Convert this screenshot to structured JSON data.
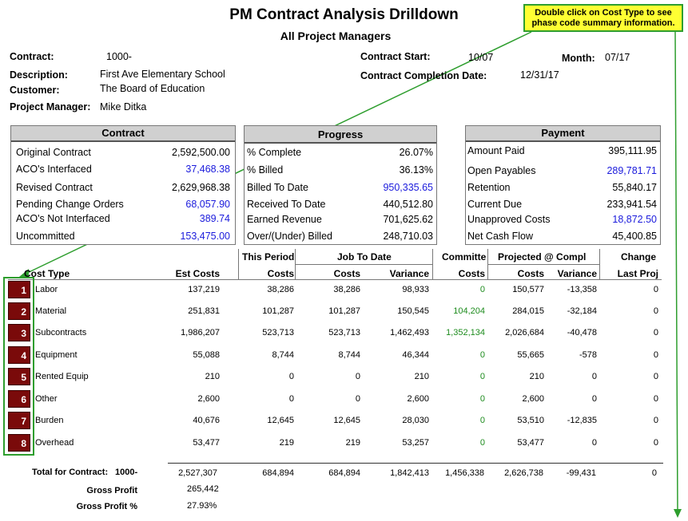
{
  "report": {
    "title": "PM Contract Analysis Drilldown",
    "subtitle": "All Project Managers",
    "callout": "Double click on Cost Type to see phase code summary information."
  },
  "info": {
    "contract_label": "Contract:",
    "contract_value": "1000-",
    "description_label": "Description:",
    "description_value": "First Ave Elementary School",
    "customer_label": "Customer:",
    "customer_value": "The Board of Education",
    "pm_label": "Project Manager:",
    "pm_value": "Mike Ditka",
    "start_label": "Contract Start:",
    "start_value": "10/07",
    "month_label": "Month:",
    "month_value": "07/17",
    "completion_label": "Contract Completion Date:",
    "completion_value": "12/31/17"
  },
  "contract_panel": {
    "title": "Contract",
    "rows": [
      {
        "label": "Original Contract",
        "value": "2,592,500.00",
        "color": "#000000"
      },
      {
        "label": "ACO's Interfaced",
        "value": "37,468.38",
        "color": "#1a1adc"
      },
      {
        "label": "Revised Contract",
        "value": "2,629,968.38",
        "color": "#000000"
      },
      {
        "label": "Pending Change Orders",
        "value": "68,057.90",
        "color": "#1a1adc"
      },
      {
        "label": "ACO's Not Interfaced",
        "value": "389.74",
        "color": "#1a1adc"
      },
      {
        "label": "Uncommitted",
        "value": "153,475.00",
        "color": "#1a1adc"
      }
    ]
  },
  "progress_panel": {
    "title": "Progress",
    "rows": [
      {
        "label": "% Complete",
        "value": "26.07%",
        "color": "#000000"
      },
      {
        "label": "% Billed",
        "value": "36.13%",
        "color": "#000000"
      },
      {
        "label": "Billed To Date",
        "value": "950,335.65",
        "color": "#1a1adc"
      },
      {
        "label": "Received To Date",
        "value": "440,512.80",
        "color": "#000000"
      },
      {
        "label": "Earned Revenue",
        "value": "701,625.62",
        "color": "#000000"
      },
      {
        "label": "Over/(Under) Billed",
        "value": "248,710.03",
        "color": "#000000"
      }
    ]
  },
  "payment_panel": {
    "title": "Payment",
    "rows": [
      {
        "label": "Amount Paid",
        "value": "395,111.95",
        "color": "#000000"
      },
      {
        "label": "Open Payables",
        "value": "289,781.71",
        "color": "#1a1adc"
      },
      {
        "label": "Retention",
        "value": "55,840.17",
        "color": "#000000"
      },
      {
        "label": "Current Due",
        "value": "233,941.54",
        "color": "#000000"
      },
      {
        "label": "Unapproved Costs",
        "value": "18,872.50",
        "color": "#1a1adc"
      },
      {
        "label": "Net Cash Flow",
        "value": "45,400.85",
        "color": "#000000"
      }
    ]
  },
  "table": {
    "group_headers": {
      "this_period": "This Period",
      "job_to_date": "Job To Date",
      "committed": "Committe",
      "projected": "Projected @ Compl",
      "change": "Change"
    },
    "headers": {
      "cost_type": "Cost Type",
      "est_costs": "Est Costs",
      "tp_costs": "Costs",
      "jtd_costs": "Costs",
      "jtd_variance": "Variance",
      "committed_costs": "Costs",
      "proj_costs": "Costs",
      "proj_variance": "Variance",
      "last_proj": "Last Proj"
    },
    "rows": [
      {
        "num": "1",
        "name": "Labor",
        "est": "137,219",
        "tp": "38,286",
        "jtd": "38,286",
        "var": "98,933",
        "comm": "0",
        "proj": "150,577",
        "pvar": "-13,358",
        "chg": "0"
      },
      {
        "num": "2",
        "name": "Material",
        "est": "251,831",
        "tp": "101,287",
        "jtd": "101,287",
        "var": "150,545",
        "comm": "104,204",
        "proj": "284,015",
        "pvar": "-32,184",
        "chg": "0"
      },
      {
        "num": "3",
        "name": "Subcontracts",
        "est": "1,986,207",
        "tp": "523,713",
        "jtd": "523,713",
        "var": "1,462,493",
        "comm": "1,352,134",
        "proj": "2,026,684",
        "pvar": "-40,478",
        "chg": "0"
      },
      {
        "num": "4",
        "name": "Equipment",
        "est": "55,088",
        "tp": "8,744",
        "jtd": "8,744",
        "var": "46,344",
        "comm": "0",
        "proj": "55,665",
        "pvar": "-578",
        "chg": "0"
      },
      {
        "num": "5",
        "name": "Rented Equip",
        "est": "210",
        "tp": "0",
        "jtd": "0",
        "var": "210",
        "comm": "0",
        "proj": "210",
        "pvar": "0",
        "chg": "0"
      },
      {
        "num": "6",
        "name": "Other",
        "est": "2,600",
        "tp": "0",
        "jtd": "0",
        "var": "2,600",
        "comm": "0",
        "proj": "2,600",
        "pvar": "0",
        "chg": "0"
      },
      {
        "num": "7",
        "name": "Burden",
        "est": "40,676",
        "tp": "12,645",
        "jtd": "12,645",
        "var": "28,030",
        "comm": "0",
        "proj": "53,510",
        "pvar": "-12,835",
        "chg": "0"
      },
      {
        "num": "8",
        "name": "Overhead",
        "est": "53,477",
        "tp": "219",
        "jtd": "219",
        "var": "53,257",
        "comm": "0",
        "proj": "53,477",
        "pvar": "0",
        "chg": "0"
      }
    ],
    "total": {
      "label": "Total for Contract:",
      "contract": "1000-",
      "est": "2,527,307",
      "tp": "684,894",
      "jtd": "684,894",
      "var": "1,842,413",
      "comm": "1,456,338",
      "proj": "2,626,738",
      "pvar": "-99,431",
      "chg": "0"
    },
    "gross_profit_label": "Gross Profit",
    "gross_profit_value": "265,442",
    "gross_profit_pct_label": "Gross Profit %",
    "gross_profit_pct_value": "27.93%"
  },
  "colors": {
    "button": "#7a0a0a",
    "committed_green": "#1e8c1e",
    "link_blue": "#1a1adc",
    "callout_bg": "#ffff33",
    "arrow_green": "#2e9e2e"
  }
}
